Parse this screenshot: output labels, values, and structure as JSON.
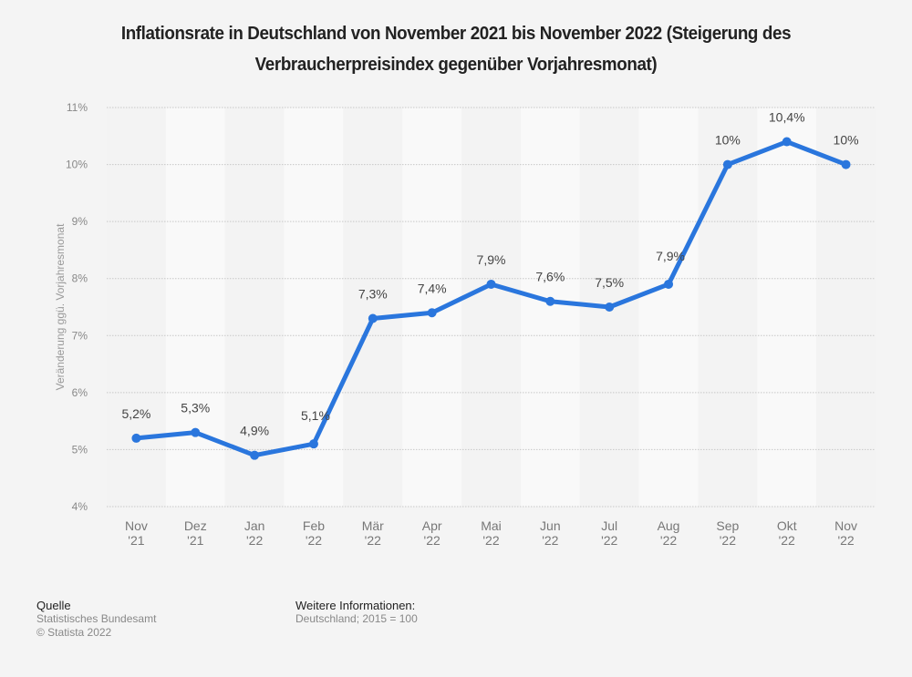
{
  "chart_data": {
    "type": "line",
    "title": "Inflationsrate in Deutschland von November 2021 bis November 2022 (Steigerung des Verbraucherpreisindex gegenüber Vorjahresmonat)",
    "xlabel": "",
    "ylabel": "Veränderung ggü. Vorjahresmonat",
    "ylim": [
      4,
      11
    ],
    "yticks": [
      4,
      5,
      6,
      7,
      8,
      9,
      10,
      11
    ],
    "ytick_labels": [
      "4%",
      "5%",
      "6%",
      "7%",
      "8%",
      "9%",
      "10%",
      "11%"
    ],
    "grid": true,
    "categories": [
      [
        "Nov",
        "'21"
      ],
      [
        "Dez",
        "'21"
      ],
      [
        "Jan",
        "'22"
      ],
      [
        "Feb",
        "'22"
      ],
      [
        "Mär",
        "'22"
      ],
      [
        "Apr",
        "'22"
      ],
      [
        "Mai",
        "'22"
      ],
      [
        "Jun",
        "'22"
      ],
      [
        "Jul",
        "'22"
      ],
      [
        "Aug",
        "'22"
      ],
      [
        "Sep",
        "'22"
      ],
      [
        "Okt",
        "'22"
      ],
      [
        "Nov",
        "'22"
      ]
    ],
    "series": [
      {
        "name": "Inflationsrate",
        "color": "#2a76dd",
        "values": [
          5.2,
          5.3,
          4.9,
          5.1,
          7.3,
          7.4,
          7.9,
          7.6,
          7.5,
          7.9,
          10.0,
          10.4,
          10.0
        ],
        "labels": [
          "5,2%",
          "5,3%",
          "4,9%",
          "5,1%",
          "7,3%",
          "7,4%",
          "7,9%",
          "7,6%",
          "7,5%",
          "7,9%",
          "10%",
          "10,4%",
          "10%"
        ]
      }
    ]
  },
  "footer": {
    "source_heading": "Quelle",
    "source_name": "Statistisches Bundesamt",
    "copyright": "© Statista 2022",
    "info_heading": "Weitere Informationen:",
    "info_text": "Deutschland; 2015 = 100"
  }
}
